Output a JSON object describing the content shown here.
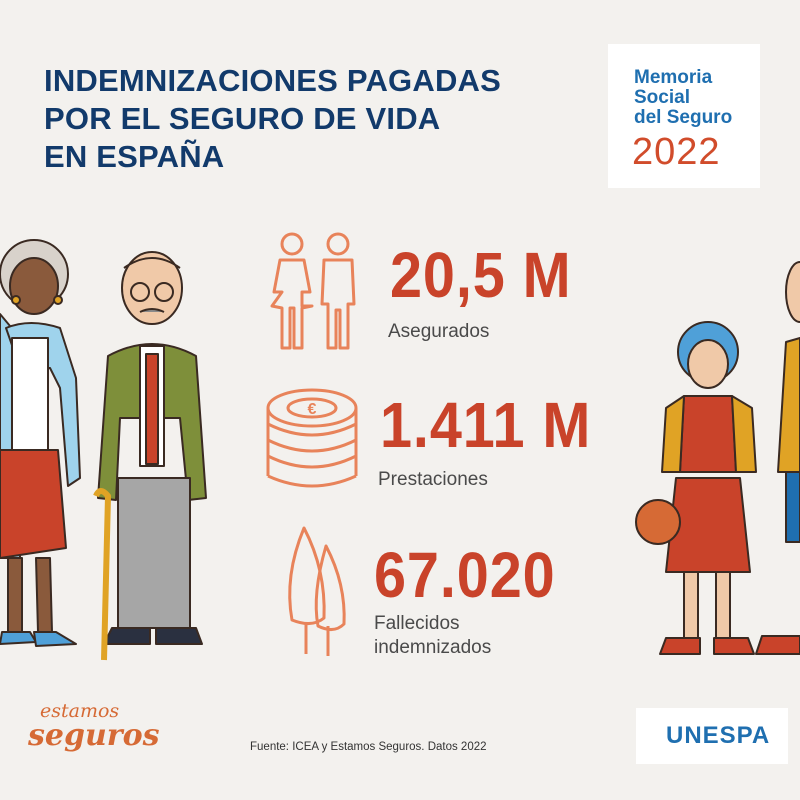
{
  "header": {
    "title_lines": [
      "INDEMNIZACIONES PAGADAS",
      "POR EL SEGURO DE VIDA",
      "EN ESPAÑA"
    ]
  },
  "memoria": {
    "lines": [
      "Memoria",
      "Social",
      "del Seguro"
    ],
    "year": "2022"
  },
  "stats": [
    {
      "value": "20,5 M",
      "label": "Asegurados",
      "icon": "man-woman-icon"
    },
    {
      "value": "1.411 M",
      "label": "Prestaciones",
      "icon": "euro-coin-stack-icon"
    },
    {
      "value": "67.020",
      "label_lines": [
        "Fallecidos",
        "indemnizados"
      ],
      "icon": "cypress-trees-icon"
    }
  ],
  "footer": {
    "source": "Fuente: ICEA y Estamos Seguros. Datos 2022",
    "brand_left": [
      "estamos",
      "seguros"
    ],
    "brand_right": "UNESPA"
  },
  "colors": {
    "title_blue": "#123a6b",
    "accent_red": "#c9432a",
    "icon_orange": "#e8835a",
    "brand_blue": "#1f6fb0",
    "background": "#f3f1ee"
  }
}
